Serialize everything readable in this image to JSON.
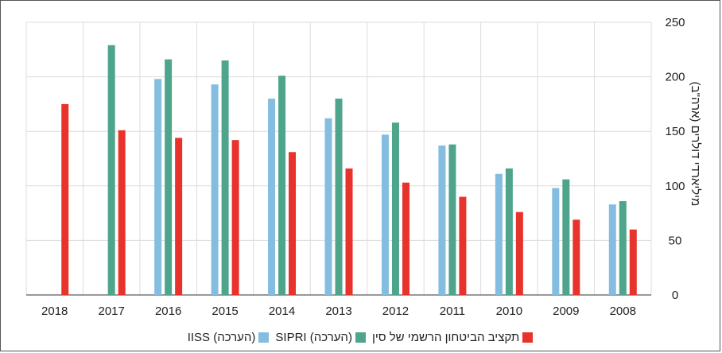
{
  "colors": {
    "official": "#e8322c",
    "sipri": "#4fa58c",
    "iiss": "#84bde0",
    "grid": "#dcdcdc",
    "axis": "#333333"
  },
  "legend": [
    {
      "label": "תקציב הביטחון הרשמי של סין",
      "color": "#e8322c"
    },
    {
      "label": "(הערכה) SIPRI",
      "color": "#4fa58c"
    },
    {
      "label": "(הערכה) IISS",
      "color": "#84bde0"
    }
  ],
  "chart_data": {
    "type": "bar",
    "orientation": "right-to-left categories",
    "ylabel": "מיליארדי דולרים (ארה\"ב)",
    "ylim": [
      0,
      250
    ],
    "yticks": [
      0,
      50,
      100,
      150,
      200,
      250
    ],
    "grid": true,
    "legend_position": "bottom",
    "categories": [
      "2008",
      "2009",
      "2010",
      "2011",
      "2012",
      "2013",
      "2014",
      "2015",
      "2016",
      "2017",
      "2018"
    ],
    "series": [
      {
        "name": "(הערכה) IISS",
        "color": "#84bde0",
        "values": [
          83,
          98,
          111,
          137,
          147,
          162,
          180,
          193,
          198,
          null,
          null
        ]
      },
      {
        "name": "(הערכה) SIPRI",
        "color": "#4fa58c",
        "values": [
          86,
          106,
          116,
          138,
          158,
          180,
          201,
          215,
          216,
          229,
          null
        ]
      },
      {
        "name": "תקציב הביטחון הרשמי של סין",
        "color": "#e8322c",
        "values": [
          60,
          69,
          76,
          90,
          103,
          116,
          131,
          142,
          144,
          151,
          175
        ]
      }
    ]
  }
}
